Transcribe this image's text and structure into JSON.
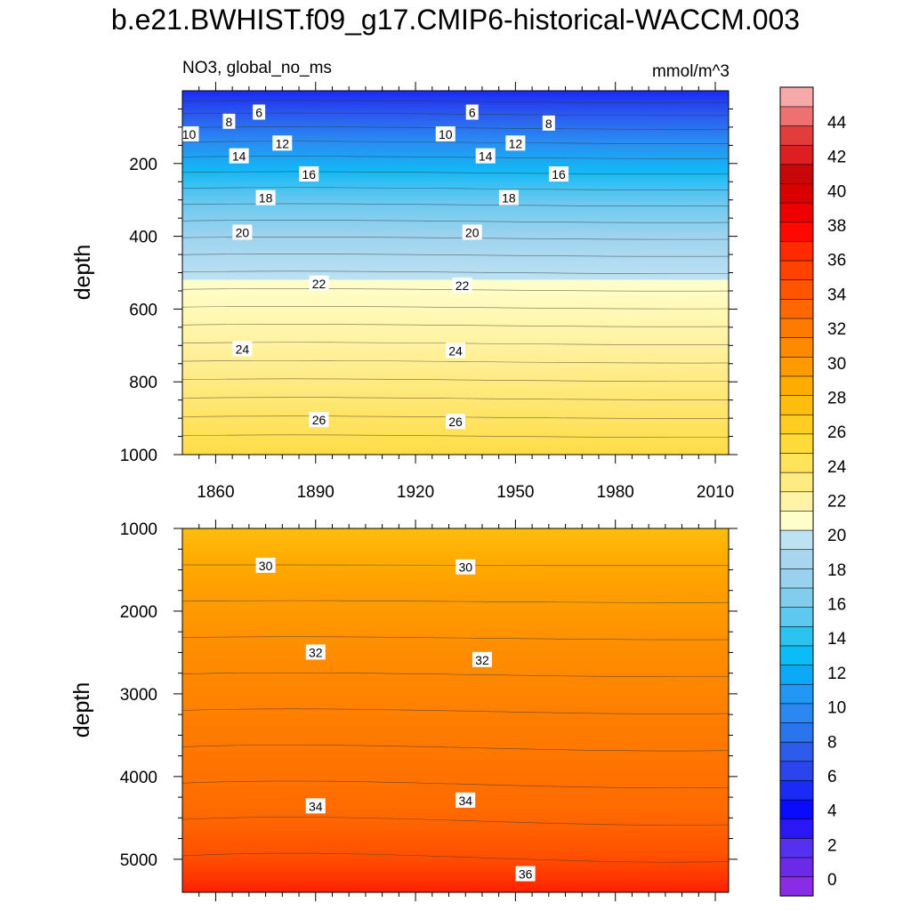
{
  "title": "b.e21.BWHIST.f09_g17.CMIP6-historical-WACCM.003",
  "chart_data": {
    "type": "heatmap",
    "variable": "NO3, global_no_ms",
    "units": "mmol/m^3",
    "xlabel": "",
    "ylabel": "depth",
    "x_ticks": [
      1860,
      1890,
      1920,
      1950,
      1980,
      2010
    ],
    "xlim": [
      1850,
      2014
    ],
    "colorbar": {
      "levels": [
        0,
        2,
        4,
        6,
        8,
        10,
        12,
        14,
        16,
        18,
        20,
        22,
        24,
        26,
        28,
        30,
        32,
        34,
        36,
        38,
        40,
        42,
        44
      ],
      "labels": [
        "0",
        "2",
        "4",
        "6",
        "8",
        "10",
        "12",
        "14",
        "16",
        "18",
        "20",
        "22",
        "24",
        "26",
        "28",
        "30",
        "32",
        "34",
        "36",
        "38",
        "40",
        "42",
        "44"
      ],
      "colors": [
        "#8a2be6",
        "#6b29e8",
        "#5530ee",
        "#2b17f6",
        "#0a0afc",
        "#1a2bf5",
        "#2a44ee",
        "#2d5ceb",
        "#2a74ee",
        "#2b88f2",
        "#1f98f6",
        "#0aaaf8",
        "#0bbcf5",
        "#2bc4f0",
        "#5ec8ef",
        "#82cdee",
        "#99d1ee",
        "#a9d6ef",
        "#bde2f2",
        "#ffffcc",
        "#fff4a6",
        "#ffec80",
        "#ffe45a",
        "#ffdb3a",
        "#ffcc20",
        "#ffbd10",
        "#ffac00",
        "#ff9a00",
        "#ff8a00",
        "#ff7a00",
        "#ff6800",
        "#ff5500",
        "#ff4200",
        "#ff2a00",
        "#ff0800",
        "#ee0000",
        "#da0000",
        "#c80808",
        "#dc2020",
        "#e23c3c",
        "#ee7070",
        "#f7a9a9"
      ]
    },
    "panels": [
      {
        "name": "upper",
        "ylim": [
          0,
          1000
        ],
        "y_ticks": [
          200,
          400,
          600,
          800,
          1000
        ],
        "contour_labels": [
          {
            "value": "6",
            "year": 1873,
            "depth": 60
          },
          {
            "value": "6",
            "year": 1937,
            "depth": 60
          },
          {
            "value": "8",
            "year": 1864,
            "depth": 85
          },
          {
            "value": "8",
            "year": 1960,
            "depth": 90
          },
          {
            "value": "10",
            "year": 1852,
            "depth": 120
          },
          {
            "value": "10",
            "year": 1929,
            "depth": 120
          },
          {
            "value": "12",
            "year": 1880,
            "depth": 145
          },
          {
            "value": "12",
            "year": 1950,
            "depth": 145
          },
          {
            "value": "14",
            "year": 1867,
            "depth": 180
          },
          {
            "value": "14",
            "year": 1941,
            "depth": 180
          },
          {
            "value": "16",
            "year": 1888,
            "depth": 230
          },
          {
            "value": "16",
            "year": 1963,
            "depth": 230
          },
          {
            "value": "18",
            "year": 1875,
            "depth": 295
          },
          {
            "value": "18",
            "year": 1948,
            "depth": 295
          },
          {
            "value": "20",
            "year": 1868,
            "depth": 390
          },
          {
            "value": "20",
            "year": 1937,
            "depth": 390
          },
          {
            "value": "22",
            "year": 1891,
            "depth": 530
          },
          {
            "value": "22",
            "year": 1934,
            "depth": 535
          },
          {
            "value": "24",
            "year": 1868,
            "depth": 710
          },
          {
            "value": "24",
            "year": 1932,
            "depth": 715
          },
          {
            "value": "26",
            "year": 1891,
            "depth": 905
          },
          {
            "value": "26",
            "year": 1932,
            "depth": 910
          }
        ]
      },
      {
        "name": "lower",
        "ylim": [
          1000,
          5400
        ],
        "y_ticks": [
          1000,
          2000,
          3000,
          4000,
          5000
        ],
        "contour_labels": [
          {
            "value": "30",
            "year": 1875,
            "depth": 1450
          },
          {
            "value": "30",
            "year": 1935,
            "depth": 1470
          },
          {
            "value": "32",
            "year": 1890,
            "depth": 2500
          },
          {
            "value": "32",
            "year": 1940,
            "depth": 2590
          },
          {
            "value": "34",
            "year": 1890,
            "depth": 4360
          },
          {
            "value": "34",
            "year": 1935,
            "depth": 4290
          },
          {
            "value": "36",
            "year": 1953,
            "depth": 5180
          }
        ]
      }
    ]
  }
}
